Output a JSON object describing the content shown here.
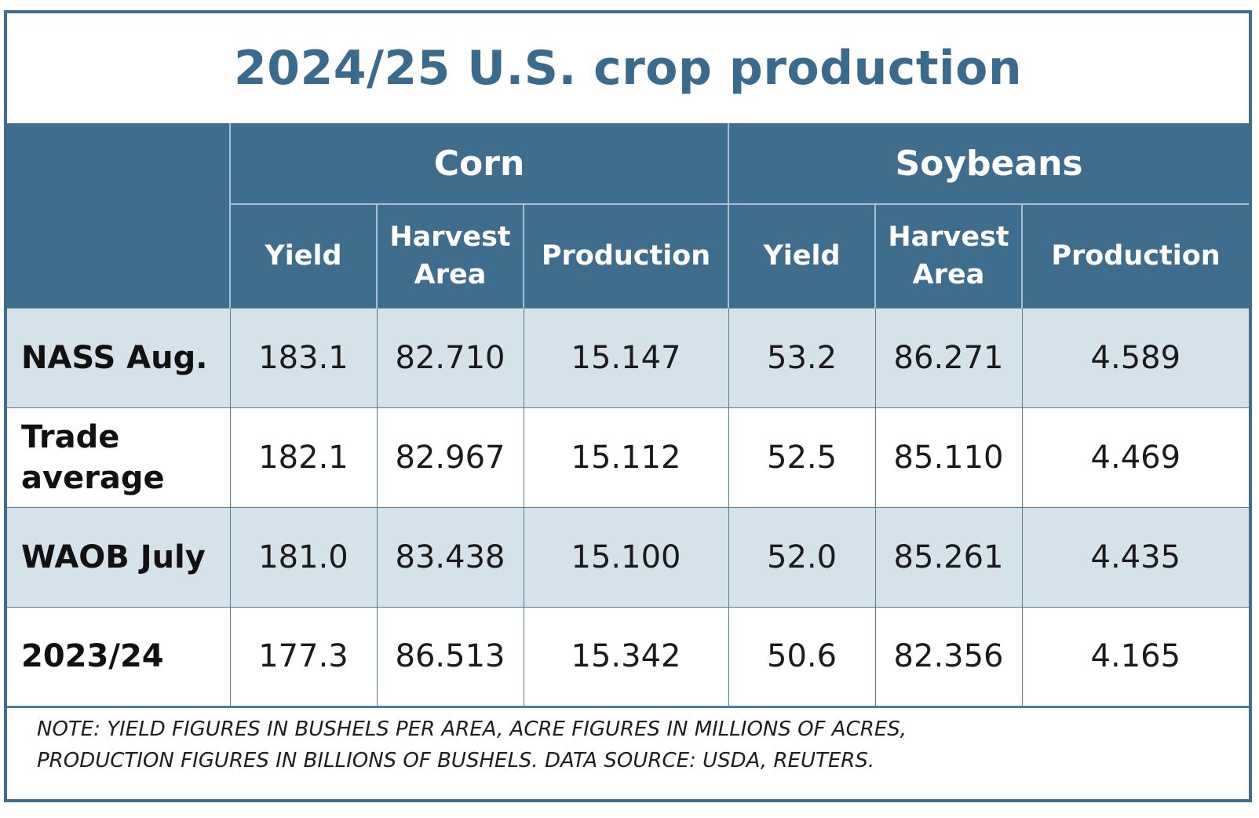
{
  "title": "2024/25 U.S. crop production",
  "colors": {
    "header_bg": "#3e6d8e",
    "title_text": "#3a6a8c",
    "shaded_row": "#d6e2ea",
    "border": "#3e6d8e"
  },
  "header": {
    "groups": [
      "Corn",
      "Soybeans"
    ],
    "subcolumns": [
      "Yield",
      "Harvest Area",
      "Production",
      "Yield",
      "Harvest Area",
      "Production"
    ]
  },
  "rows": [
    {
      "label": "NASS Aug.",
      "values": [
        "183.1",
        "82.710",
        "15.147",
        "53.2",
        "86.271",
        "4.589"
      ]
    },
    {
      "label": "Trade average",
      "values": [
        "182.1",
        "82.967",
        "15.112",
        "52.5",
        "85.110",
        "4.469"
      ]
    },
    {
      "label": "WAOB July",
      "values": [
        "181.0",
        "83.438",
        "15.100",
        "52.0",
        "85.261",
        "4.435"
      ]
    },
    {
      "label": "2023/24",
      "values": [
        "177.3",
        "86.513",
        "15.342",
        "50.6",
        "82.356",
        "4.165"
      ]
    }
  ],
  "note": {
    "line1": "NOTE: YIELD FIGURES IN BUSHELS PER AREA, ACRE FIGURES IN MILLIONS OF ACRES,",
    "line2": "PRODUCTION FIGURES IN BILLIONS OF BUSHELS. DATA SOURCE: USDA, REUTERS."
  },
  "chart_data": {
    "type": "table",
    "title": "2024/25 U.S. crop production",
    "column_groups": [
      {
        "name": "Corn",
        "columns": [
          "Yield",
          "Harvest Area",
          "Production"
        ]
      },
      {
        "name": "Soybeans",
        "columns": [
          "Yield",
          "Harvest Area",
          "Production"
        ]
      }
    ],
    "row_labels": [
      "NASS Aug.",
      "Trade average",
      "WAOB July",
      "2023/24"
    ],
    "values": [
      [
        183.1,
        82.71,
        15.147,
        53.2,
        86.271,
        4.589
      ],
      [
        182.1,
        82.967,
        15.112,
        52.5,
        85.11,
        4.469
      ],
      [
        181.0,
        83.438,
        15.1,
        52.0,
        85.261,
        4.435
      ],
      [
        177.3,
        86.513,
        15.342,
        50.6,
        82.356,
        4.165
      ]
    ]
  }
}
